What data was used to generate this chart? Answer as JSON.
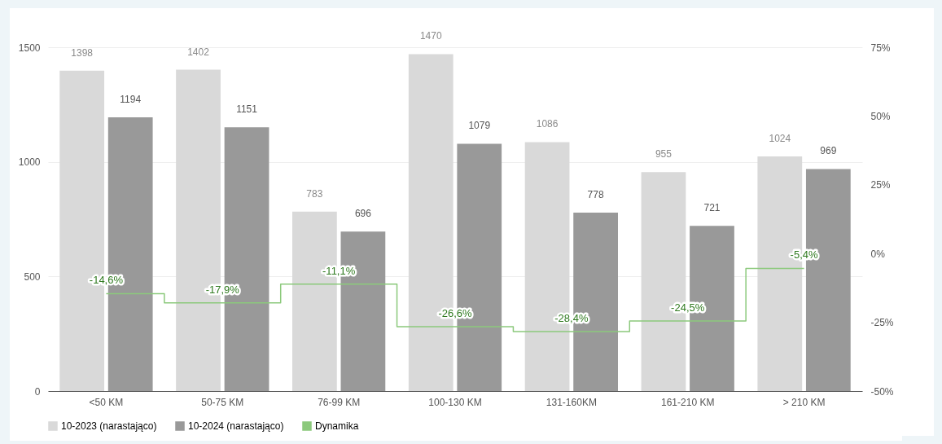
{
  "chart_data": {
    "type": "bar",
    "categories": [
      "<50 KM",
      "50-75 KM",
      "76-99 KM",
      "100-130 KM",
      "131-160KM",
      "161-210 KM",
      "> 210 KM"
    ],
    "series": [
      {
        "name": "10-2023 (narastająco)",
        "color": "#d9d9d9",
        "values": [
          1398,
          1402,
          783,
          1470,
          1086,
          955,
          1024
        ]
      },
      {
        "name": "10-2024 (narastająco)",
        "color": "#999999",
        "values": [
          1194,
          1151,
          696,
          1079,
          778,
          721,
          969
        ]
      },
      {
        "name": "Dynamika",
        "type": "step",
        "axis": "y2",
        "color": "#8cc97c",
        "values": [
          -14.6,
          -17.9,
          -11.1,
          -26.6,
          -28.4,
          -24.5,
          -5.4
        ],
        "value_labels": [
          "-14,6%",
          "-17,9%",
          "-11,1%",
          "-26,6%",
          "-28,4%",
          "-24,5%",
          "-5,4%"
        ]
      }
    ],
    "data_labels": true,
    "ylim": [
      0,
      1500
    ],
    "yticks": [
      0,
      500,
      1000,
      1500
    ],
    "y2lim": [
      -50,
      75
    ],
    "y2ticks": [
      {
        "value": -50,
        "label": "-50%"
      },
      {
        "value": -25,
        "label": "-25%"
      },
      {
        "value": 0,
        "label": "0%"
      },
      {
        "value": 25,
        "label": "25%"
      },
      {
        "value": 50,
        "label": "50%"
      },
      {
        "value": 75,
        "label": "75%"
      }
    ],
    "grid": "y",
    "legend": "bottom"
  }
}
